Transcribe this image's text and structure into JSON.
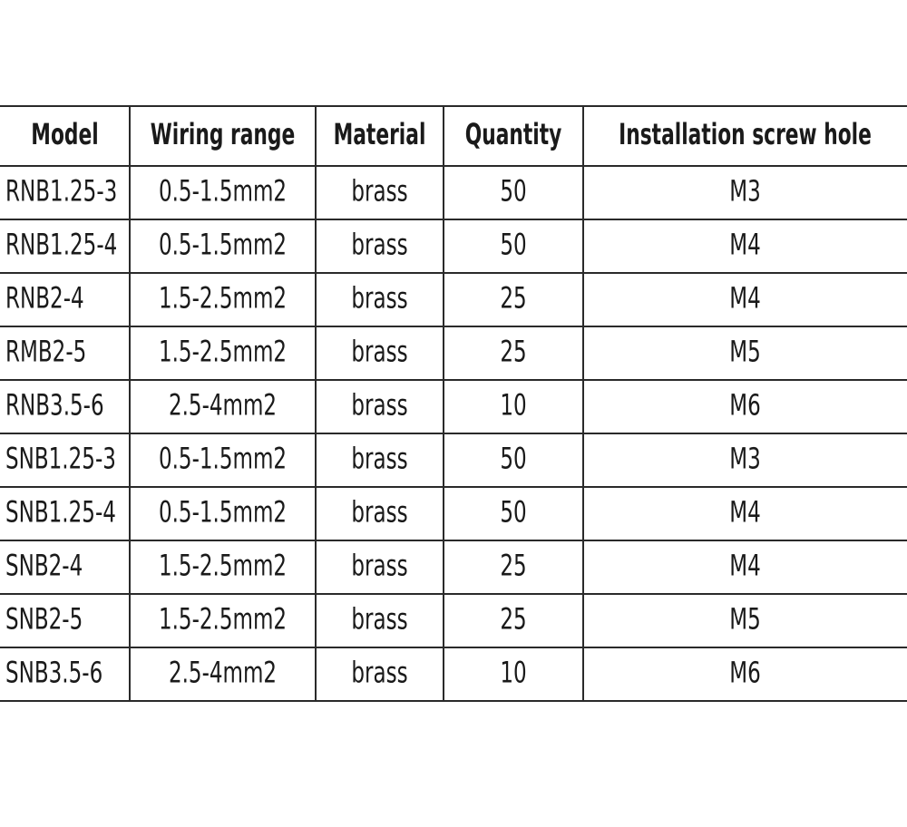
{
  "table": {
    "header": [
      "Model",
      "Wiring range",
      "Material",
      "Quantity",
      "Installation screw hole"
    ],
    "rows": [
      [
        "RNB1.25-3",
        "0.5-1.5mm2",
        "brass",
        "50",
        "M3"
      ],
      [
        "RNB1.25-4",
        "0.5-1.5mm2",
        "brass",
        "50",
        "M4"
      ],
      [
        "RNB2-4",
        "1.5-2.5mm2",
        "brass",
        "25",
        "M4"
      ],
      [
        "RMB2-5",
        "1.5-2.5mm2",
        "brass",
        "25",
        "M5"
      ],
      [
        "RNB3.5-6",
        "2.5-4mm2",
        "brass",
        "10",
        "M6"
      ],
      [
        "SNB1.25-3",
        "0.5-1.5mm2",
        "brass",
        "50",
        "M3"
      ],
      [
        "SNB1.25-4",
        "0.5-1.5mm2",
        "brass",
        "50",
        "M4"
      ],
      [
        "SNB2-4",
        "1.5-2.5mm2",
        "brass",
        "25",
        "M4"
      ],
      [
        "SNB2-5",
        "1.5-2.5mm2",
        "brass",
        "25",
        "M5"
      ],
      [
        "SNB3.5-6",
        "2.5-4mm2",
        "brass",
        "10",
        "M6"
      ]
    ]
  }
}
